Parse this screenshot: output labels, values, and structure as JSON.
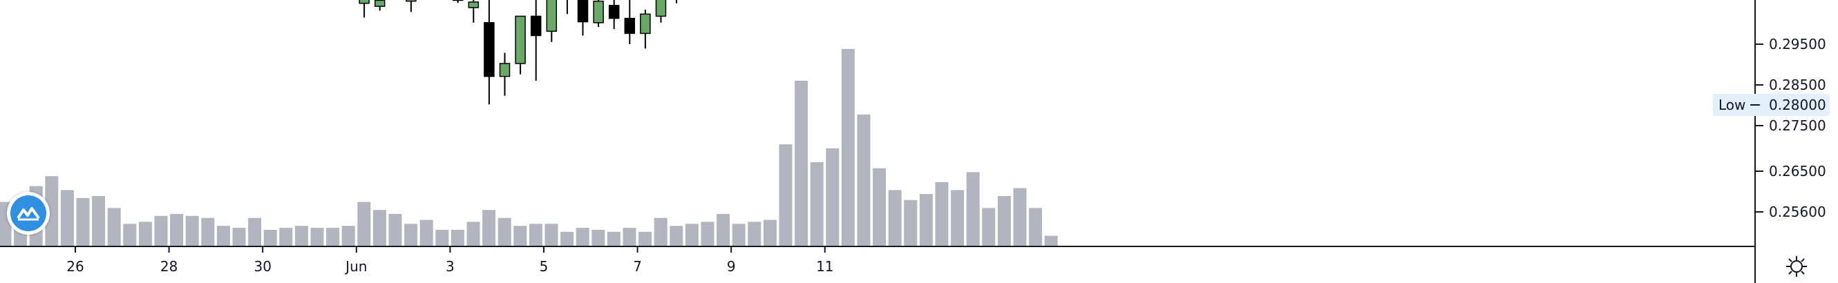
{
  "chart_data": {
    "type": "candlestick+volume",
    "price_axis": {
      "ticks": [
        "0.29500",
        "0.28500",
        "0.27500",
        "0.26500",
        "0.25600"
      ],
      "tick_values": [
        0.295,
        0.285,
        0.275,
        0.265,
        0.256
      ],
      "ylim": [
        0.2545,
        0.3055
      ]
    },
    "low_marker": {
      "label": "Low",
      "value": 0.28,
      "value_text": "0.28000"
    },
    "time_axis": {
      "labels": [
        "26",
        "28",
        "30",
        "Jun",
        "3",
        "5",
        "7",
        "9",
        "11"
      ],
      "label_slots": [
        4.5,
        10.5,
        16.5,
        22.5,
        28.5,
        34.5,
        40.5,
        46.5,
        52.5
      ]
    },
    "volume": {
      "max_value": 100,
      "values": [
        22,
        23,
        30,
        35,
        28,
        24,
        25,
        19,
        11,
        12,
        15,
        16,
        15,
        14,
        10,
        9,
        14,
        8,
        9,
        10,
        9,
        9,
        10,
        22,
        18,
        16,
        11,
        13,
        8,
        8,
        12,
        18,
        14,
        10,
        11,
        11,
        7,
        9,
        8,
        7,
        9,
        7,
        14,
        10,
        11,
        12,
        16,
        11,
        12,
        13,
        51,
        83,
        42,
        49,
        99,
        66,
        39,
        28,
        23,
        26,
        32,
        28,
        37,
        19,
        25,
        29,
        19,
        5
      ]
    },
    "candles": [
      {
        "i": 23,
        "o": 0.3045,
        "h": 0.3062,
        "l": 0.3012,
        "c": 0.3058
      },
      {
        "i": 24,
        "o": 0.3038,
        "h": 0.3058,
        "l": 0.3028,
        "c": 0.3052
      },
      {
        "i": 26,
        "o": 0.305,
        "h": 0.306,
        "l": 0.3025,
        "c": 0.3054
      },
      {
        "i": 29,
        "o": 0.306,
        "h": 0.3066,
        "l": 0.3046,
        "c": 0.3052
      },
      {
        "i": 30,
        "o": 0.3035,
        "h": 0.306,
        "l": 0.3,
        "c": 0.3048
      },
      {
        "i": 31,
        "o": 0.3,
        "h": 0.3058,
        "l": 0.281,
        "c": 0.2875
      },
      {
        "i": 32,
        "o": 0.2875,
        "h": 0.293,
        "l": 0.283,
        "c": 0.2905
      },
      {
        "i": 33,
        "o": 0.2905,
        "h": 0.3015,
        "l": 0.288,
        "c": 0.3015
      },
      {
        "i": 34,
        "o": 0.3015,
        "h": 0.3065,
        "l": 0.2865,
        "c": 0.297
      },
      {
        "i": 35,
        "o": 0.298,
        "h": 0.3062,
        "l": 0.2955,
        "c": 0.3062
      },
      {
        "i": 36,
        "o": 0.306,
        "h": 0.3065,
        "l": 0.302,
        "c": 0.306
      },
      {
        "i": 37,
        "o": 0.306,
        "h": 0.3064,
        "l": 0.297,
        "c": 0.3002
      },
      {
        "i": 38,
        "o": 0.3,
        "h": 0.3064,
        "l": 0.299,
        "c": 0.305
      },
      {
        "i": 39,
        "o": 0.304,
        "h": 0.3065,
        "l": 0.2985,
        "c": 0.301
      },
      {
        "i": 40,
        "o": 0.301,
        "h": 0.3062,
        "l": 0.295,
        "c": 0.2975
      },
      {
        "i": 41,
        "o": 0.2975,
        "h": 0.303,
        "l": 0.294,
        "c": 0.302
      },
      {
        "i": 42,
        "o": 0.3015,
        "h": 0.306,
        "l": 0.3,
        "c": 0.3055
      },
      {
        "i": 43,
        "o": 0.306,
        "h": 0.3066,
        "l": 0.3045,
        "c": 0.3064
      }
    ],
    "colors": {
      "volume_bar": "#b2b5be",
      "candle_up": "#6aa867",
      "candle_down": "#000000",
      "axis_line": "#131722",
      "low_badge_bg": "#e3eff9",
      "logo": "#2f8fe0"
    },
    "grid": false
  },
  "ui": {
    "logo_icon": "tradingview-logo-icon",
    "settings_icon": "gear-icon"
  }
}
